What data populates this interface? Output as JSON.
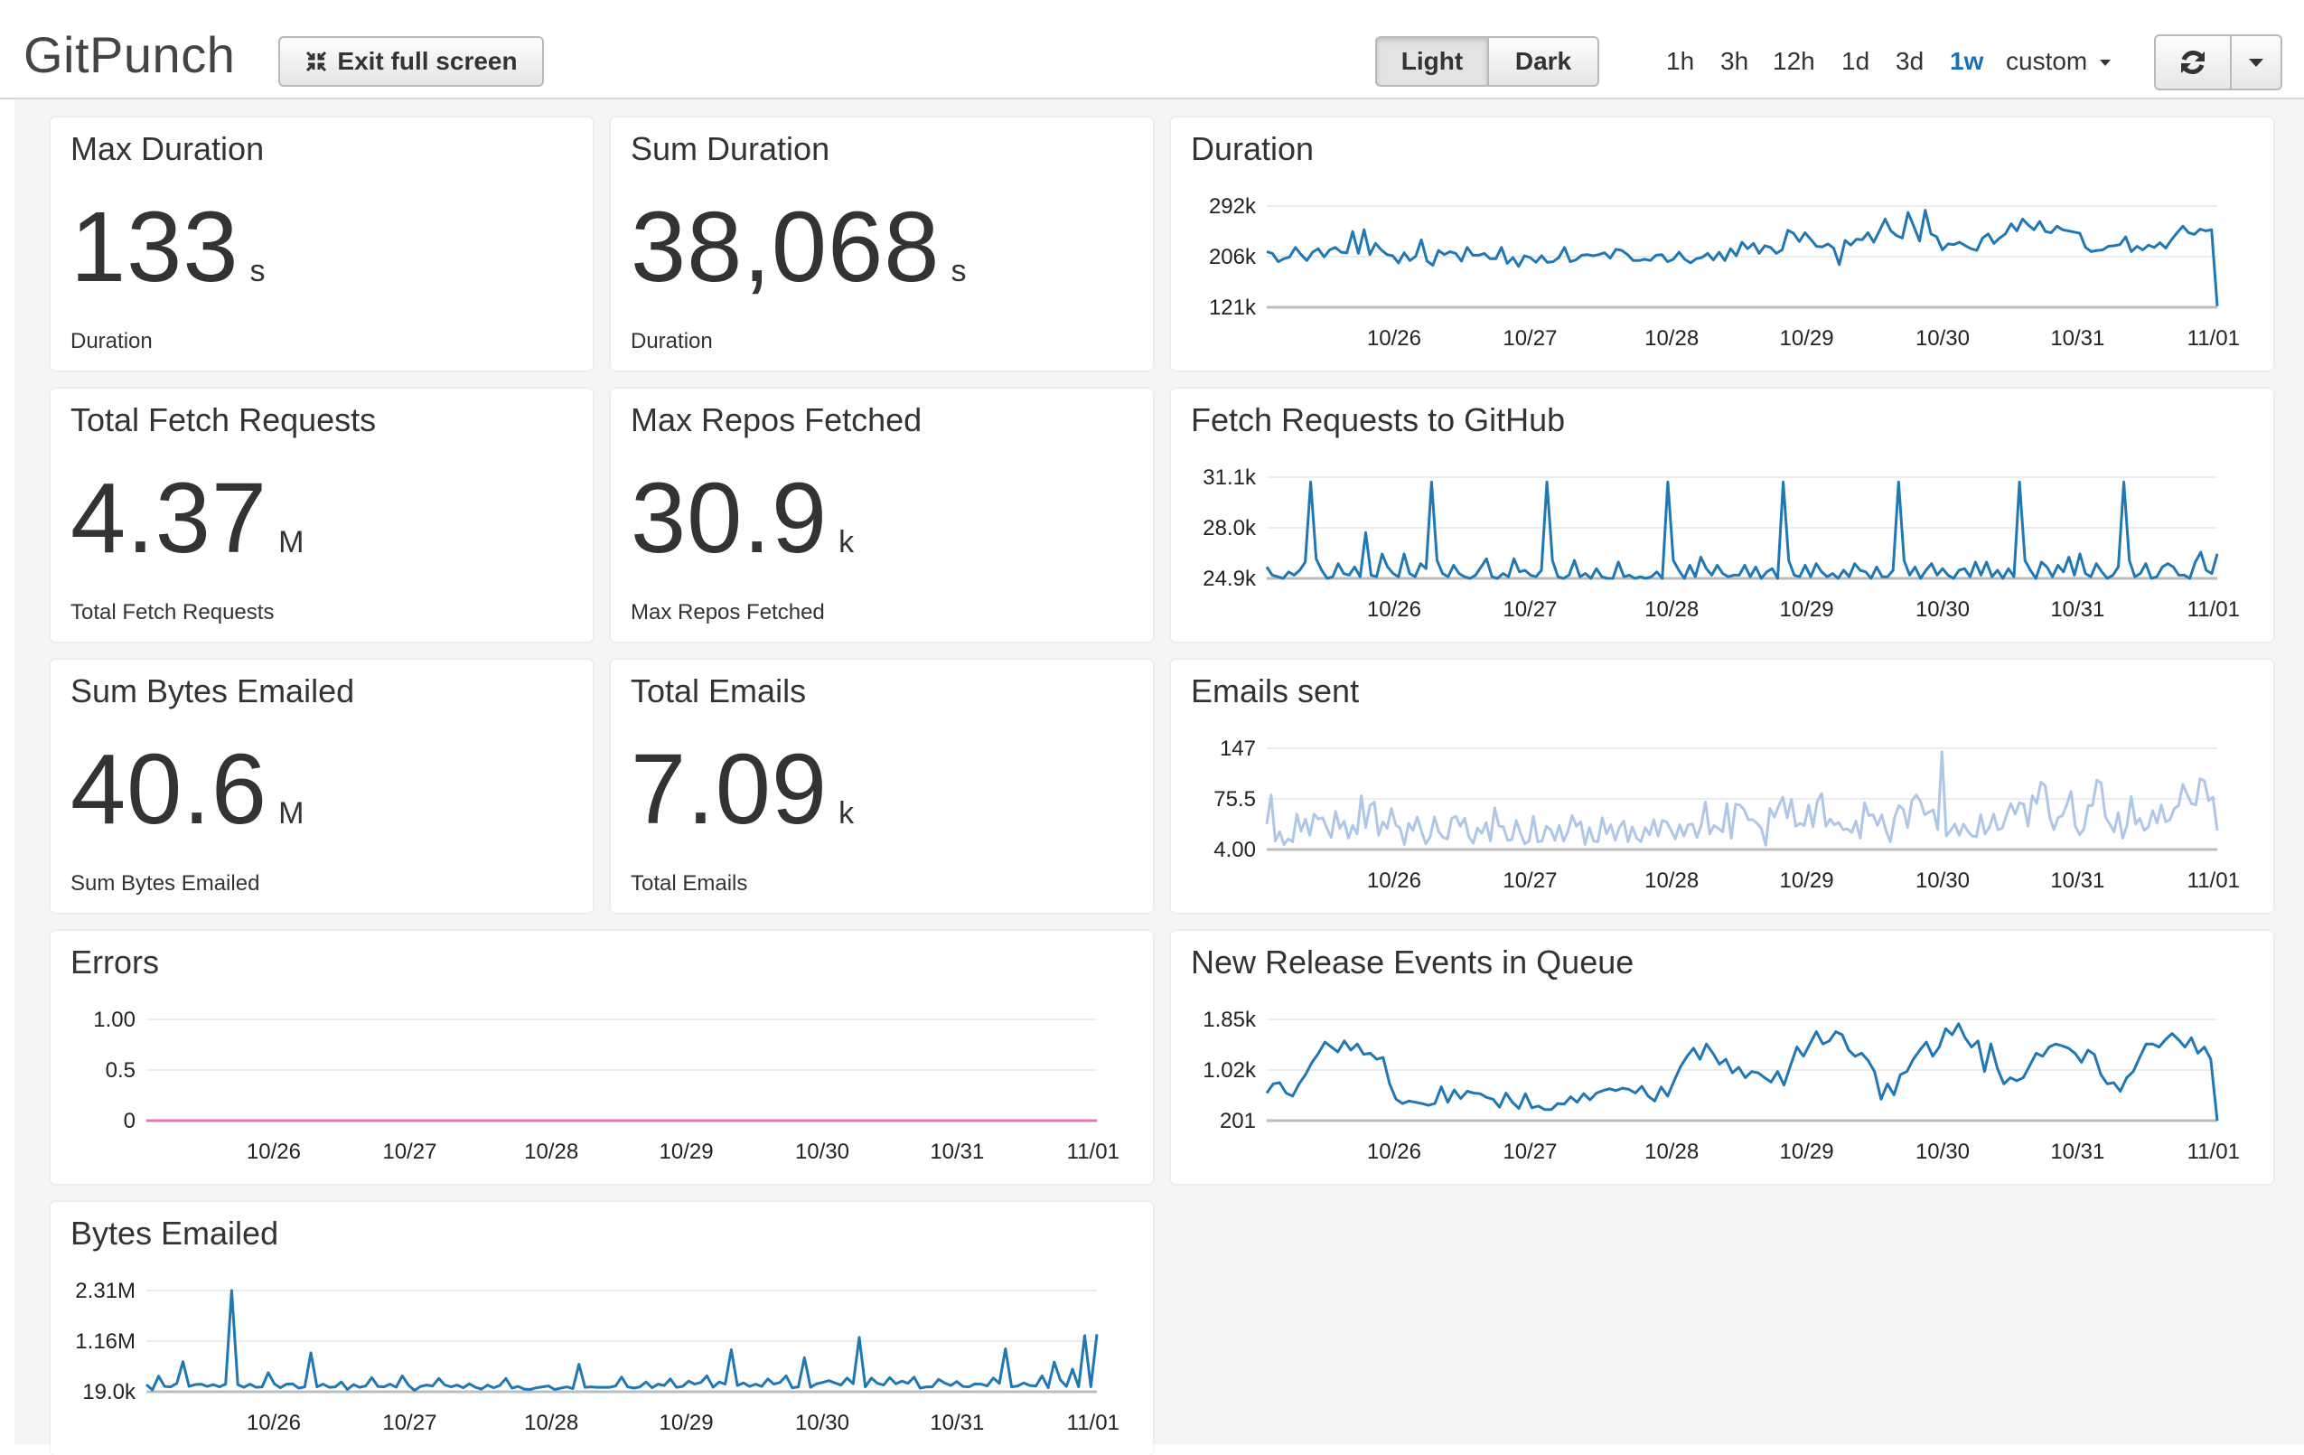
{
  "app": {
    "title": "GitPunch"
  },
  "toolbar": {
    "exit_fullscreen_label": "Exit full screen",
    "theme_light_label": "Light",
    "theme_dark_label": "Dark",
    "ranges": [
      "1h",
      "3h",
      "12h",
      "1d",
      "3d",
      "1w"
    ],
    "active_range": "1w",
    "custom_label": "custom"
  },
  "colors": {
    "line_blue": "#1f77b4",
    "line_lightblue": "#aec7e8",
    "line_pink": "#e377c2",
    "active_range": "#1a6fb5"
  },
  "stats": [
    {
      "title": "Max Duration",
      "value": "133",
      "unit": "s",
      "label": "Duration"
    },
    {
      "title": "Sum Duration",
      "value": "38,068",
      "unit": "s",
      "label": "Duration"
    },
    {
      "title": "Total Fetch Requests",
      "value": "4.37",
      "unit": "M",
      "label": "Total Fetch Requests"
    },
    {
      "title": "Max Repos Fetched",
      "value": "30.9",
      "unit": "k",
      "label": "Max Repos Fetched"
    },
    {
      "title": "Sum Bytes Emailed",
      "value": "40.6",
      "unit": "M",
      "label": "Sum Bytes Emailed"
    },
    {
      "title": "Total Emails",
      "value": "7.09",
      "unit": "k",
      "label": "Total Emails"
    }
  ],
  "chart_data": [
    {
      "title": "Duration",
      "type": "line",
      "color": "#1f77b4",
      "y_ticks": [
        "292k",
        "206k",
        "121k"
      ],
      "ylim": [
        121000,
        292000
      ],
      "x_ticks": [
        "10/26",
        "10/27",
        "10/28",
        "10/29",
        "10/30",
        "10/31",
        "11/01"
      ],
      "values": [
        215000,
        212000,
        198000,
        203000,
        206000,
        222000,
        210000,
        200000,
        214000,
        220000,
        206000,
        218000,
        222000,
        214000,
        213000,
        249000,
        212000,
        252000,
        210000,
        229000,
        218000,
        210000,
        208000,
        196000,
        213000,
        200000,
        207000,
        235000,
        199000,
        192000,
        217000,
        210000,
        215000,
        212000,
        199000,
        222000,
        209000,
        209000,
        212000,
        203000,
        203000,
        222000,
        195000,
        205000,
        190000,
        208000,
        205000,
        197000,
        208000,
        197000,
        198000,
        205000,
        222000,
        198000,
        201000,
        209000,
        210000,
        208000,
        210000,
        213000,
        204000,
        219000,
        217000,
        210000,
        200000,
        200000,
        202000,
        200000,
        209000,
        210000,
        198000,
        202000,
        214000,
        202000,
        196000,
        203000,
        205000,
        212000,
        201000,
        214000,
        200000,
        220000,
        208000,
        231000,
        220000,
        229000,
        212000,
        225000,
        222000,
        212000,
        218000,
        251000,
        246000,
        232000,
        247000,
        236000,
        224000,
        223000,
        228000,
        221000,
        193000,
        234000,
        226000,
        236000,
        235000,
        247000,
        231000,
        250000,
        270000,
        250000,
        242000,
        238000,
        281000,
        258000,
        233000,
        285000,
        245000,
        240000,
        218000,
        228000,
        227000,
        231000,
        225000,
        220000,
        217000,
        238000,
        245000,
        229000,
        238000,
        245000,
        262000,
        250000,
        270000,
        260000,
        252000,
        266000,
        249000,
        247000,
        258000,
        252000,
        250000,
        248000,
        246000,
        222000,
        215000,
        217000,
        218000,
        224000,
        225000,
        227000,
        240000,
        215000,
        224000,
        218000,
        226000,
        222000,
        230000,
        221000,
        235000,
        247000,
        258000,
        247000,
        244000,
        253000,
        250000,
        252000,
        123000
      ]
    },
    {
      "title": "Fetch Requests to GitHub",
      "type": "line",
      "color": "#1f77b4",
      "y_ticks": [
        "31.1k",
        "28.0k",
        "24.9k"
      ],
      "ylim": [
        24900,
        31100
      ],
      "x_ticks": [
        "10/26",
        "10/27",
        "10/28",
        "10/29",
        "10/30",
        "10/31",
        "11/01"
      ],
      "values": [
        25600,
        25100,
        25000,
        24900,
        25300,
        25100,
        25400,
        25900,
        30800,
        26100,
        25400,
        24900,
        25000,
        25800,
        25200,
        25100,
        25600,
        25000,
        27700,
        25100,
        25000,
        26400,
        25600,
        25200,
        25000,
        26400,
        25200,
        25000,
        25800,
        25500,
        30800,
        26000,
        25200,
        25000,
        25700,
        25200,
        25000,
        24900,
        25100,
        25600,
        26100,
        25000,
        24900,
        25200,
        25000,
        26100,
        25300,
        25400,
        25100,
        25000,
        25400,
        30800,
        26000,
        25000,
        24900,
        25100,
        26000,
        25000,
        25200,
        24900,
        25500,
        25000,
        24900,
        24900,
        25900,
        25000,
        25100,
        24900,
        25000,
        24900,
        25000,
        25300,
        24900,
        30800,
        26000,
        25400,
        24900,
        25700,
        25000,
        26200,
        25500,
        25100,
        25700,
        25200,
        25000,
        25100,
        25100,
        25700,
        25000,
        25600,
        24900,
        25300,
        25500,
        24900,
        30800,
        26000,
        25100,
        25000,
        25700,
        25000,
        25800,
        25300,
        25000,
        25200,
        24900,
        25400,
        25000,
        25800,
        25400,
        25300,
        24900,
        25600,
        25000,
        25000,
        25400,
        30800,
        26000,
        25100,
        25600,
        24900,
        25400,
        25800,
        25100,
        25500,
        25100,
        24900,
        25400,
        25500,
        25000,
        25900,
        25100,
        25900,
        25000,
        25400,
        24900,
        25500,
        25000,
        30800,
        26000,
        25400,
        24900,
        25900,
        25600,
        25000,
        25700,
        25300,
        26200,
        25100,
        26400,
        25200,
        25000,
        25800,
        25300,
        24900,
        25100,
        25600,
        30800,
        26000,
        25000,
        25200,
        25800,
        24900,
        25000,
        25600,
        25800,
        25600,
        25100,
        25100,
        24900,
        25900,
        26500,
        25400,
        25200,
        26400
      ]
    },
    {
      "title": "Emails sent",
      "type": "line",
      "color": "#aec7e8",
      "y_ticks": [
        "147",
        "75.5",
        "4.00"
      ],
      "ylim": [
        4,
        147
      ],
      "x_ticks": [
        "10/26",
        "10/27",
        "10/28",
        "10/29",
        "10/30",
        "10/31",
        "11/01"
      ],
      "values": [
        40,
        81,
        16,
        29,
        11,
        19,
        15,
        54,
        30,
        47,
        24,
        54,
        47,
        49,
        34,
        21,
        58,
        34,
        44,
        20,
        38,
        26,
        80,
        35,
        66,
        71,
        24,
        43,
        34,
        62,
        39,
        34,
        11,
        41,
        31,
        50,
        29,
        12,
        22,
        50,
        29,
        21,
        19,
        48,
        51,
        37,
        48,
        22,
        13,
        34,
        27,
        42,
        16,
        63,
        37,
        36,
        17,
        18,
        45,
        27,
        12,
        16,
        51,
        15,
        16,
        37,
        32,
        17,
        38,
        16,
        29,
        52,
        37,
        43,
        11,
        35,
        16,
        15,
        49,
        26,
        39,
        17,
        35,
        44,
        15,
        36,
        20,
        15,
        35,
        25,
        46,
        23,
        45,
        43,
        31,
        19,
        39,
        23,
        39,
        40,
        21,
        38,
        71,
        26,
        38,
        34,
        29,
        69,
        20,
        68,
        67,
        60,
        46,
        46,
        41,
        34,
        10,
        62,
        50,
        65,
        78,
        49,
        75,
        37,
        41,
        38,
        67,
        36,
        72,
        83,
        37,
        47,
        39,
        42,
        32,
        33,
        28,
        44,
        20,
        70,
        52,
        53,
        38,
        53,
        30,
        15,
        50,
        66,
        61,
        35,
        73,
        81,
        72,
        53,
        57,
        60,
        32,
        142,
        23,
        31,
        40,
        24,
        40,
        30,
        23,
        22,
        53,
        26,
        35,
        54,
        32,
        34,
        53,
        69,
        54,
        70,
        68,
        37,
        80,
        69,
        99,
        94,
        51,
        32,
        49,
        52,
        67,
        86,
        37,
        25,
        33,
        66,
        66,
        102,
        98,
        50,
        40,
        29,
        56,
        20,
        38,
        79,
        40,
        48,
        31,
        36,
        59,
        41,
        67,
        43,
        46,
        62,
        66,
        96,
        82,
        69,
        67,
        104,
        101,
        73,
        78,
        31
      ]
    },
    {
      "title": "Errors",
      "type": "line",
      "color": "#e377c2",
      "y_ticks": [
        "1.00",
        "0.5",
        "0"
      ],
      "ylim": [
        0,
        1
      ],
      "x_ticks": [
        "10/26",
        "10/27",
        "10/28",
        "10/29",
        "10/30",
        "10/31",
        "11/01"
      ],
      "values": [
        0,
        0
      ]
    },
    {
      "title": "New Release Events in Queue",
      "type": "line",
      "color": "#1f77b4",
      "y_ticks": [
        "1.85k",
        "1.02k",
        "201"
      ],
      "ylim": [
        201,
        1850
      ],
      "x_ticks": [
        "10/26",
        "10/27",
        "10/28",
        "10/29",
        "10/30",
        "10/31",
        "11/01"
      ],
      "values": [
        650,
        800,
        820,
        650,
        600,
        800,
        950,
        1150,
        1300,
        1480,
        1400,
        1320,
        1500,
        1350,
        1450,
        1280,
        1300,
        1200,
        1230,
        800,
        550,
        480,
        520,
        500,
        480,
        450,
        480,
        750,
        500,
        700,
        560,
        680,
        650,
        640,
        580,
        550,
        420,
        650,
        500,
        400,
        640,
        410,
        440,
        380,
        380,
        480,
        470,
        590,
        500,
        640,
        540,
        650,
        690,
        720,
        690,
        730,
        710,
        650,
        760,
        600,
        520,
        750,
        600,
        850,
        1080,
        1250,
        1380,
        1200,
        1450,
        1300,
        1120,
        1200,
        980,
        1070,
        900,
        1000,
        980,
        900,
        830,
        1000,
        780,
        1100,
        1400,
        1250,
        1450,
        1650,
        1450,
        1500,
        1650,
        1600,
        1350,
        1250,
        1300,
        1180,
        1000,
        550,
        800,
        620,
        950,
        1000,
        1200,
        1350,
        1480,
        1250,
        1400,
        1700,
        1600,
        1780,
        1550,
        1400,
        1500,
        1000,
        1450,
        1050,
        800,
        900,
        850,
        900,
        1100,
        1300,
        1250,
        1400,
        1450,
        1420,
        1380,
        1300,
        1150,
        1350,
        1280,
        950,
        800,
        820,
        680,
        900,
        1000,
        1230,
        1450,
        1450,
        1400,
        1520,
        1620,
        1520,
        1400,
        1550,
        1300,
        1400,
        1200,
        200
      ]
    },
    {
      "title": "Bytes Emailed",
      "type": "line",
      "color": "#1f77b4",
      "y_ticks": [
        "2.31M",
        "1.16M",
        "19.0k"
      ],
      "ylim": [
        19000,
        2310000
      ],
      "x_ticks": [
        "10/26",
        "10/27",
        "10/28",
        "10/29",
        "10/30",
        "10/31",
        "11/01"
      ],
      "values": [
        180000,
        60000,
        370000,
        140000,
        130000,
        210000,
        700000,
        140000,
        180000,
        190000,
        140000,
        180000,
        130000,
        190000,
        2310000,
        180000,
        120000,
        190000,
        120000,
        130000,
        450000,
        200000,
        110000,
        190000,
        200000,
        100000,
        130000,
        900000,
        130000,
        190000,
        120000,
        130000,
        240000,
        70000,
        180000,
        120000,
        150000,
        340000,
        140000,
        130000,
        190000,
        120000,
        380000,
        170000,
        50000,
        140000,
        170000,
        150000,
        320000,
        170000,
        130000,
        170000,
        110000,
        200000,
        120000,
        80000,
        170000,
        110000,
        160000,
        320000,
        100000,
        140000,
        80000,
        70000,
        110000,
        130000,
        150000,
        70000,
        100000,
        130000,
        90000,
        640000,
        120000,
        130000,
        120000,
        120000,
        120000,
        150000,
        350000,
        130000,
        100000,
        130000,
        240000,
        110000,
        190000,
        160000,
        310000,
        120000,
        140000,
        260000,
        190000,
        230000,
        380000,
        120000,
        240000,
        190000,
        970000,
        160000,
        220000,
        140000,
        190000,
        140000,
        310000,
        190000,
        230000,
        380000,
        110000,
        130000,
        790000,
        120000,
        200000,
        230000,
        270000,
        220000,
        170000,
        330000,
        200000,
        1250000,
        130000,
        330000,
        210000,
        170000,
        340000,
        200000,
        260000,
        210000,
        350000,
        100000,
        130000,
        130000,
        300000,
        220000,
        160000,
        250000,
        140000,
        130000,
        200000,
        190000,
        150000,
        330000,
        210000,
        990000,
        130000,
        150000,
        220000,
        160000,
        150000,
        380000,
        110000,
        690000,
        290000,
        140000,
        530000,
        130000,
        1290000,
        130000,
        1320000
      ]
    }
  ]
}
